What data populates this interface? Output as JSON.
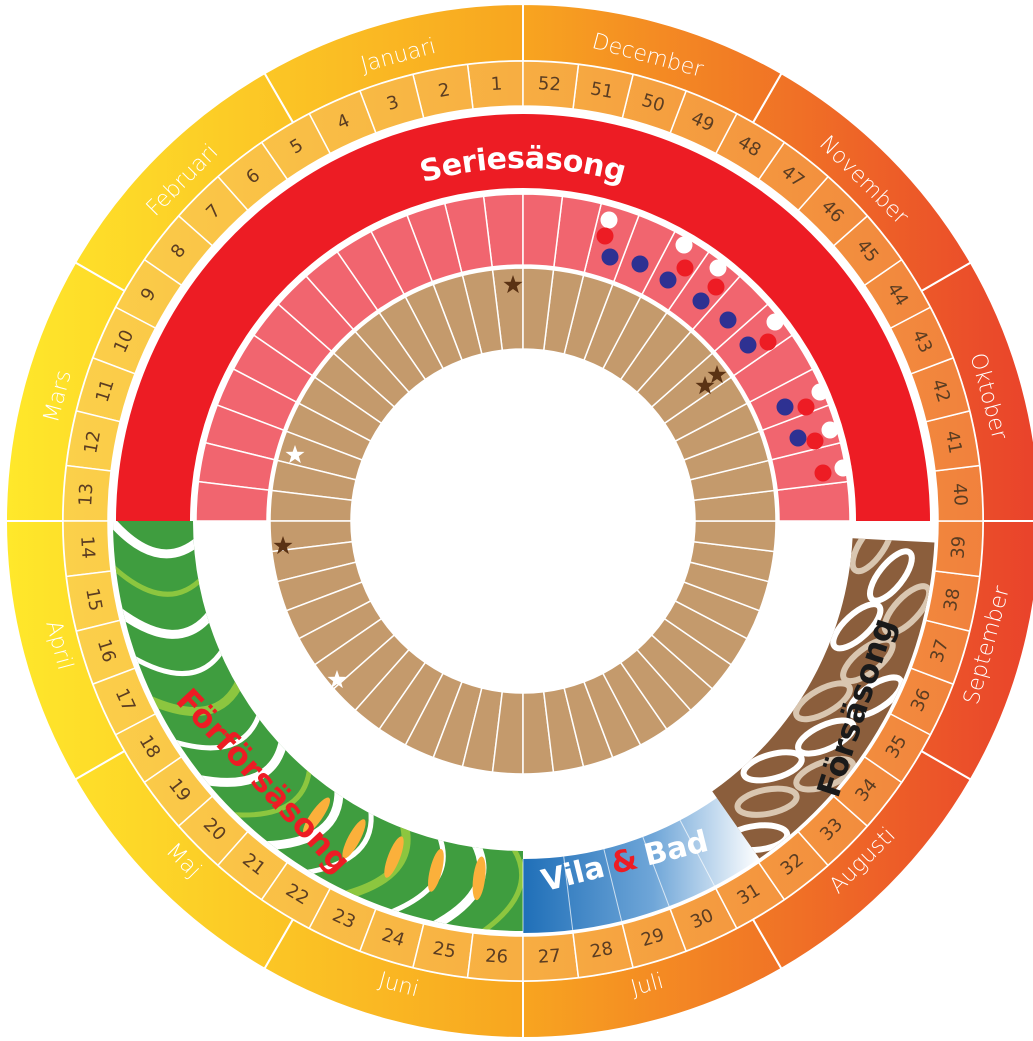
{
  "months": [
    "Januari",
    "Februari",
    "Mars",
    "April",
    "Maj",
    "Juni",
    "Juli",
    "Augusti",
    "September",
    "Oktober",
    "November",
    "December"
  ],
  "weeks": [
    1,
    2,
    3,
    4,
    5,
    6,
    7,
    8,
    9,
    10,
    11,
    12,
    13,
    14,
    15,
    16,
    17,
    18,
    19,
    20,
    21,
    22,
    23,
    24,
    25,
    26,
    27,
    28,
    29,
    30,
    31,
    32,
    33,
    34,
    35,
    36,
    37,
    38,
    39,
    40,
    41,
    42,
    43,
    44,
    45,
    46,
    47,
    48,
    49,
    50,
    51,
    52
  ],
  "seasons": {
    "series": "Seriesäsong",
    "forforsasong": "Förförsäsong",
    "vila": {
      "first": "Vila",
      "amp": "&",
      "last": "Bad"
    },
    "forsasong": "Försäsong"
  }
}
